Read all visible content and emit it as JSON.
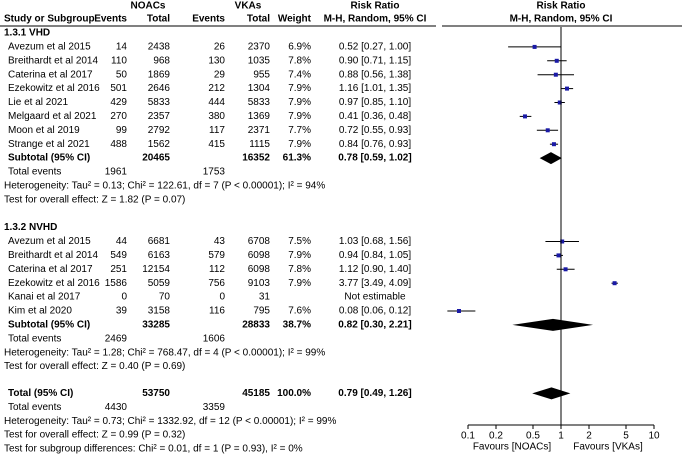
{
  "chart_data": {
    "type": "forest",
    "headers": {
      "group1": "NOACs",
      "group2": "VKAs",
      "rr_table": "Risk Ratio",
      "rr_plot": "Risk Ratio",
      "study": "Study or Subgroup",
      "events1": "Events",
      "total1": "Total",
      "events2": "Events",
      "total2": "Total",
      "weight": "Weight",
      "method_table": "M-H, Random, 95% CI",
      "method_plot": "M-H, Random, 95% CI"
    },
    "subgroups": [
      {
        "title": "1.3.1 VHD",
        "studies": [
          {
            "name": "Avezum et al 2015",
            "e1": 14,
            "t1": 2438,
            "e2": 26,
            "t2": 2370,
            "weight": "6.9%",
            "value": 0.52,
            "lower": 0.27,
            "upper": 1.0,
            "value_label": "0.52 [0.27, 1.00]"
          },
          {
            "name": "Breithardt et al 2014",
            "e1": 110,
            "t1": 968,
            "e2": 130,
            "t2": 1035,
            "weight": "7.8%",
            "value": 0.9,
            "lower": 0.71,
            "upper": 1.15,
            "value_label": "0.90 [0.71, 1.15]"
          },
          {
            "name": "Caterina et al 2017",
            "e1": 50,
            "t1": 1869,
            "e2": 29,
            "t2": 955,
            "weight": "7.4%",
            "value": 0.88,
            "lower": 0.56,
            "upper": 1.38,
            "value_label": "0.88 [0.56, 1.38]"
          },
          {
            "name": "Ezekowitz et al 2016",
            "e1": 501,
            "t1": 2646,
            "e2": 212,
            "t2": 1304,
            "weight": "7.9%",
            "value": 1.16,
            "lower": 1.01,
            "upper": 1.35,
            "value_label": "1.16 [1.01, 1.35]"
          },
          {
            "name": "Lie et al 2021",
            "e1": 429,
            "t1": 5833,
            "e2": 444,
            "t2": 5833,
            "weight": "7.9%",
            "value": 0.97,
            "lower": 0.85,
            "upper": 1.1,
            "value_label": "0.97 [0.85, 1.10]"
          },
          {
            "name": "Melgaard et al 2021",
            "e1": 270,
            "t1": 2357,
            "e2": 380,
            "t2": 1369,
            "weight": "7.9%",
            "value": 0.41,
            "lower": 0.36,
            "upper": 0.48,
            "value_label": "0.41 [0.36, 0.48]"
          },
          {
            "name": "Moon et al 2019",
            "e1": 99,
            "t1": 2792,
            "e2": 117,
            "t2": 2371,
            "weight": "7.7%",
            "value": 0.72,
            "lower": 0.55,
            "upper": 0.93,
            "value_label": "0.72 [0.55, 0.93]"
          },
          {
            "name": "Strange et al 2021",
            "e1": 488,
            "t1": 1562,
            "e2": 415,
            "t2": 1115,
            "weight": "7.9%",
            "value": 0.84,
            "lower": 0.76,
            "upper": 0.93,
            "value_label": "0.84 [0.76, 0.93]"
          }
        ],
        "subtotal": {
          "name": "Subtotal (95% CI)",
          "t1": 20465,
          "t2": 16352,
          "weight": "61.3%",
          "value": 0.78,
          "lower": 0.59,
          "upper": 1.02,
          "value_label": "0.78 [0.59, 1.02]"
        },
        "total_events": {
          "name": "Total events",
          "e1": 1961,
          "e2": 1753
        },
        "heterogeneity": "Heterogeneity: Tau² = 0.13; Chi² = 122.61, df = 7 (P < 0.00001); I² = 94%",
        "overall_test": "Test for overall effect: Z = 1.82 (P = 0.07)"
      },
      {
        "title": "1.3.2 NVHD",
        "studies": [
          {
            "name": "Avezum et al 2015",
            "e1": 44,
            "t1": 6681,
            "e2": 43,
            "t2": 6708,
            "weight": "7.5%",
            "value": 1.03,
            "lower": 0.68,
            "upper": 1.56,
            "value_label": "1.03 [0.68, 1.56]"
          },
          {
            "name": "Breithardt et al 2014",
            "e1": 549,
            "t1": 6163,
            "e2": 579,
            "t2": 6098,
            "weight": "7.9%",
            "value": 0.94,
            "lower": 0.84,
            "upper": 1.05,
            "value_label": "0.94 [0.84, 1.05]"
          },
          {
            "name": "Caterina et al 2017",
            "e1": 251,
            "t1": 12154,
            "e2": 112,
            "t2": 6098,
            "weight": "7.8%",
            "value": 1.12,
            "lower": 0.9,
            "upper": 1.4,
            "value_label": "1.12 [0.90, 1.40]"
          },
          {
            "name": "Ezekowitz et al 2016",
            "e1": 1586,
            "t1": 5059,
            "e2": 756,
            "t2": 9103,
            "weight": "7.9%",
            "value": 3.77,
            "lower": 3.49,
            "upper": 4.09,
            "value_label": "3.77 [3.49, 4.09]"
          },
          {
            "name": "Kanai et al 2017",
            "e1": 0,
            "t1": 70,
            "e2": 0,
            "t2": 31,
            "value": null,
            "lower": null,
            "upper": null,
            "value_label": "Not estimable"
          },
          {
            "name": "Kim et al 2020",
            "e1": 39,
            "t1": 3158,
            "e2": 116,
            "t2": 795,
            "weight": "7.6%",
            "value": 0.08,
            "lower": 0.06,
            "upper": 0.12,
            "value_label": "0.08 [0.06, 0.12]"
          }
        ],
        "subtotal": {
          "name": "Subtotal (95% CI)",
          "t1": 33285,
          "t2": 28833,
          "weight": "38.7%",
          "value": 0.82,
          "lower": 0.3,
          "upper": 2.21,
          "value_label": "0.82 [0.30, 2.21]"
        },
        "total_events": {
          "name": "Total events",
          "e1": 2469,
          "e2": 1606
        },
        "heterogeneity": "Heterogeneity: Tau² = 1.28; Chi² = 768.47, df = 4 (P < 0.00001); I² = 99%",
        "overall_test": "Test for overall effect: Z = 0.40 (P = 0.69)"
      }
    ],
    "total": {
      "name": "Total (95% CI)",
      "t1": 53750,
      "t2": 45185,
      "weight": "100.0%",
      "value": 0.79,
      "lower": 0.49,
      "upper": 1.26,
      "value_label": "0.79 [0.49, 1.26]"
    },
    "total_events": {
      "name": "Total events",
      "e1": 4430,
      "e2": 3359
    },
    "heterogeneity": "Heterogeneity: Tau² = 0.73; Chi² = 1332.92, df = 12 (P < 0.00001); I² = 99%",
    "overall_test": "Test for overall effect: Z = 0.99 (P = 0.32)",
    "subgroup_test": "Test for subgroup differences: Chi² = 0.01, df = 1 (P = 0.93), I² = 0%",
    "x_log": true,
    "xlim": [
      0.05,
      20
    ],
    "xticks": [
      0.1,
      0.2,
      0.5,
      1,
      2,
      5,
      10
    ],
    "favours": [
      "Favours [NOACs]",
      "Favours [VKAs]"
    ],
    "marker_color": "#1a1aa6"
  }
}
